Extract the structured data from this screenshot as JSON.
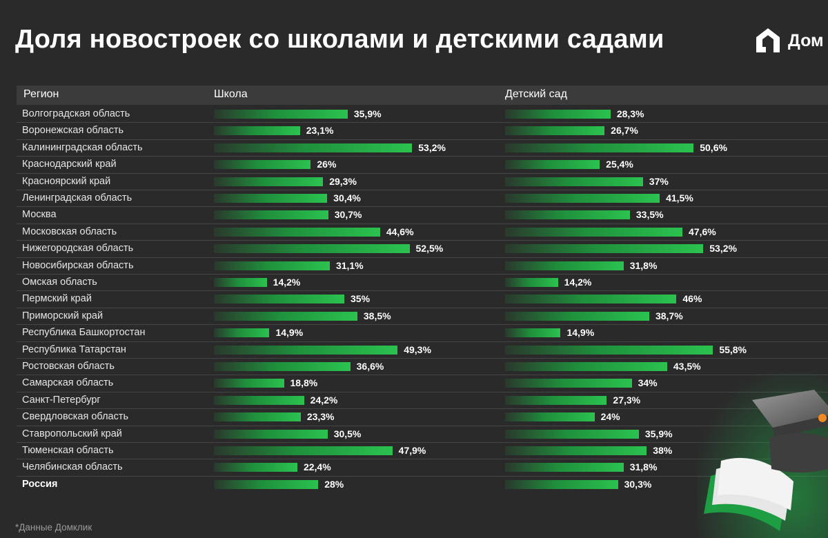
{
  "title": "Доля новостроек со школами и детскими садами",
  "logo": {
    "text": "Дом",
    "icon": "house-logo-icon"
  },
  "footnote": "*Данные Домклик",
  "colors": {
    "background": "#2a2a2a",
    "bar_start": "#1f8f3c",
    "bar_end": "#2bc24f",
    "header_bg": "#3b3b3b"
  },
  "chart_data": {
    "type": "bar",
    "orientation": "horizontal",
    "columns": [
      "Регион",
      "Школа",
      "Детский сад"
    ],
    "categories": [
      "Волгоградская область",
      "Воронежская область",
      "Калининградская область",
      "Краснодарский край",
      "Красноярский край",
      "Ленинградская область",
      "Москва",
      "Московская область",
      "Нижегородская область",
      "Новосибирская область",
      "Омская область",
      "Пермский край",
      "Приморский край",
      "Республика Башкортостан",
      "Республика Татарстан",
      "Ростовская область",
      "Самарская область",
      "Санкт-Петербург",
      "Свердловская область",
      "Ставропольский край",
      "Тюменская область",
      "Челябинская область",
      "Россия"
    ],
    "series": [
      {
        "name": "Школа",
        "values": [
          35.9,
          23.1,
          53.2,
          26,
          29.3,
          30.4,
          30.7,
          44.6,
          52.5,
          31.1,
          14.2,
          35,
          38.5,
          14.9,
          49.3,
          36.6,
          18.8,
          24.2,
          23.3,
          30.5,
          47.9,
          22.4,
          28
        ],
        "labels": [
          "35,9%",
          "23,1%",
          "53,2%",
          "26%",
          "29,3%",
          "30,4%",
          "30,7%",
          "44,6%",
          "52,5%",
          "31,1%",
          "14,2%",
          "35%",
          "38,5%",
          "14,9%",
          "49,3%",
          "36,6%",
          "18,8%",
          "24,2%",
          "23,3%",
          "30,5%",
          "47,9%",
          "22,4%",
          "28%"
        ]
      },
      {
        "name": "Детский сад",
        "values": [
          28.3,
          26.7,
          50.6,
          25.4,
          37,
          41.5,
          33.5,
          47.6,
          53.2,
          31.8,
          14.2,
          46,
          38.7,
          14.9,
          55.8,
          43.5,
          34,
          27.3,
          24,
          35.9,
          38,
          31.8,
          30.3
        ],
        "labels": [
          "28,3%",
          "26,7%",
          "50,6%",
          "25,4%",
          "37%",
          "41,5%",
          "33,5%",
          "47,6%",
          "53,2%",
          "31,8%",
          "14,2%",
          "46%",
          "38,7%",
          "14,9%",
          "55,8%",
          "43,5%",
          "34%",
          "27,3%",
          "24%",
          "35,9%",
          "38%",
          "31,8%",
          "30,3%"
        ]
      }
    ],
    "unit": "%"
  }
}
